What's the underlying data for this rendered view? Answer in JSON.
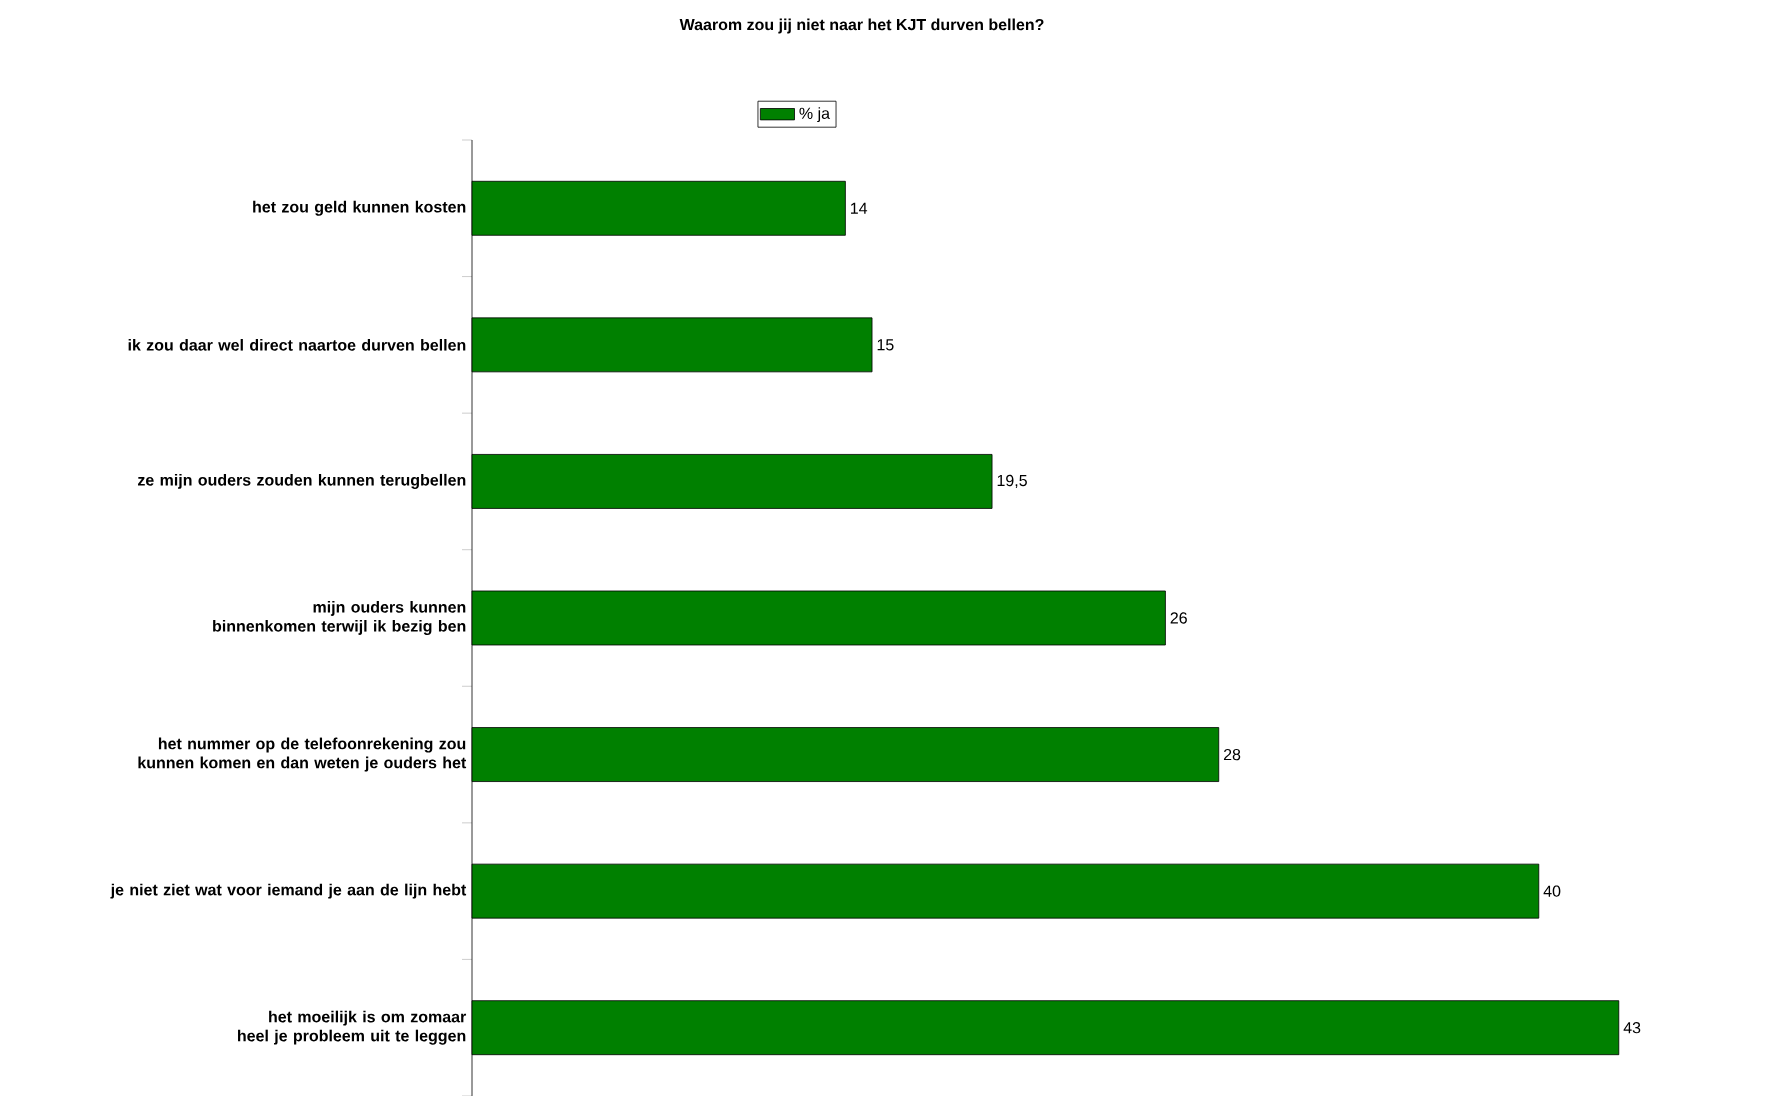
{
  "chart_data": {
    "type": "bar",
    "orientation": "horizontal",
    "title": "Waarom zou jij niet naar het KJT durven bellen?",
    "categories": [
      "het zou geld kunnen kosten",
      "ik zou daar wel direct naartoe durven bellen",
      "ze mijn ouders zouden kunnen terugbellen",
      "mijn ouders kunnen binnenkomen terwijl ik bezig ben",
      "het nummer op de telefoonrekening zou kunnen komen en dan weten je ouders het",
      "je niet ziet wat voor iemand je aan de lijn hebt",
      "het moeilijk is om zomaar heel je probleem uit te leggen"
    ],
    "series": [
      {
        "name": "% ja",
        "color": "#008000",
        "values": [
          14,
          15,
          19.5,
          26,
          28,
          40,
          43
        ],
        "value_labels": [
          "14",
          "15",
          "19,5",
          "26",
          "28",
          "40",
          "43"
        ]
      }
    ],
    "legend": "top",
    "tick_labels": "y"
  }
}
